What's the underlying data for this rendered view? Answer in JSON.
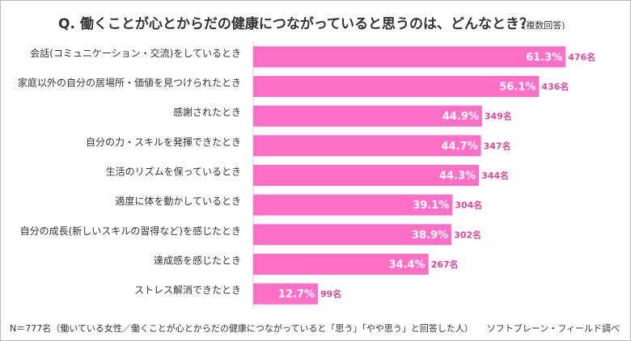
{
  "chart_data": {
    "type": "bar",
    "orientation": "horizontal",
    "title": "Q.  働くことが心とからだの健康につながっていると思うのは、どんなとき？",
    "subtitle": "(複数回答)",
    "categories": [
      "会話(コミュニケーション・交流)をしているとき",
      "家庭以外の自分の居場所・価値を見つけられたとき",
      "感謝されたとき",
      "自分の力・スキルを発揮できたとき",
      "生活のリズムを保っているとき",
      "適度に体を動かしているとき",
      "自分の成長(新しいスキルの習得など)を感じたとき",
      "達成感を感じたとき",
      "ストレス解消できたとき"
    ],
    "values": [
      61.3,
      56.1,
      44.9,
      44.7,
      44.3,
      39.1,
      38.9,
      34.4,
      12.7
    ],
    "value_labels": [
      "61.3%",
      "56.1%",
      "44.9%",
      "44.7%",
      "44.3%",
      "39.1%",
      "38.9%",
      "34.4%",
      "12.7%"
    ],
    "count_labels": [
      "476名",
      "436名",
      "349名",
      "347名",
      "344名",
      "304名",
      "302名",
      "267名",
      "99名"
    ],
    "color": "#ff6ec7",
    "count_color": "#e0459f",
    "xlim": [
      0,
      70
    ],
    "footnote": "N＝777名（働いている女性／働くことが心とからだの健康につながっていると「思う」「やや思う」と回答した人）",
    "source": "ソフトブレーン・フィールド調べ"
  }
}
